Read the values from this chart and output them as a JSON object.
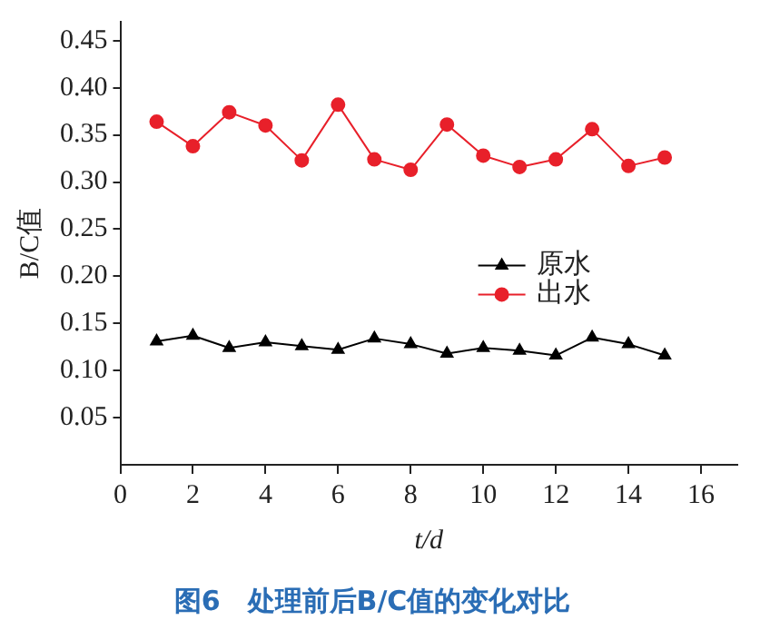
{
  "chart_data": {
    "type": "line",
    "title": "图6　处理前后B/C值的变化对比",
    "xlabel": "t/d",
    "ylabel": "B/C值",
    "x": [
      1,
      2,
      3,
      4,
      5,
      6,
      7,
      8,
      9,
      10,
      11,
      12,
      13,
      14,
      15
    ],
    "series": [
      {
        "name": "原水",
        "color": "#000000",
        "marker": "triangle",
        "values": [
          0.131,
          0.137,
          0.124,
          0.13,
          0.126,
          0.122,
          0.134,
          0.128,
          0.118,
          0.124,
          0.121,
          0.116,
          0.135,
          0.128,
          0.116
        ]
      },
      {
        "name": "出水",
        "color": "#e8202a",
        "marker": "circle",
        "values": [
          0.364,
          0.338,
          0.374,
          0.36,
          0.323,
          0.382,
          0.324,
          0.313,
          0.361,
          0.328,
          0.316,
          0.324,
          0.356,
          0.317,
          0.326
        ]
      }
    ],
    "xlim": [
      0,
      17
    ],
    "xticks": [
      0,
      2,
      4,
      6,
      8,
      10,
      12,
      14,
      16
    ],
    "ylim": [
      0,
      0.47
    ],
    "yticks": [
      0.05,
      {
        "value": 0.1,
        "label": "0.10"
      },
      0.15,
      {
        "value": 0.2,
        "label": "0.20"
      },
      0.25,
      {
        "value": 0.3,
        "label": "0.30"
      },
      0.35,
      {
        "value": 0.4,
        "label": "0.40"
      },
      0.45
    ],
    "grid": false,
    "legend": "right",
    "line_style": "solid"
  }
}
